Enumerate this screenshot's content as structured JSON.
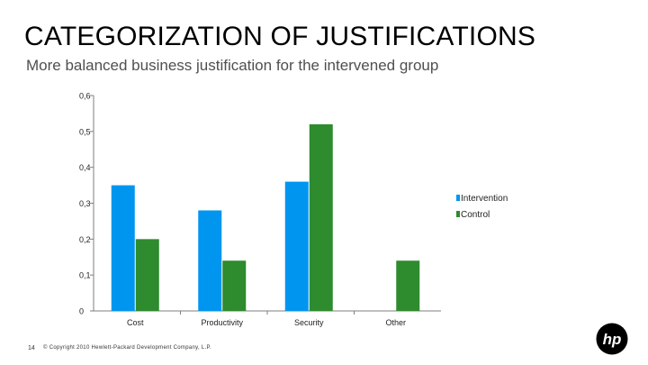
{
  "slide": {
    "title": "CATEGORIZATION OF JUSTIFICATIONS",
    "subtitle": "More balanced business justification for the intervened group",
    "page_number": "14",
    "copyright": "© Copyright 2010 Hewlett-Packard Development Company, L.P.",
    "logo_text": "hp"
  },
  "colors": {
    "intervention": "#0096f0",
    "control": "#2e8b2e",
    "axis": "#7f7f7f",
    "gridline": "#d9d9d9"
  },
  "chart_data": {
    "type": "bar",
    "categories": [
      "Cost",
      "Productivity",
      "Security",
      "Other"
    ],
    "series": [
      {
        "name": "Intervention",
        "values": [
          0.35,
          0.28,
          0.36,
          0
        ]
      },
      {
        "name": "Control",
        "values": [
          0.2,
          0.14,
          0.52,
          0.14
        ]
      }
    ],
    "y_ticks": [
      "0",
      "0,1",
      "0,2",
      "0,3",
      "0,4",
      "0,5",
      "0,6"
    ],
    "ylim": [
      0,
      0.6
    ],
    "grid": false,
    "legend_position": "right",
    "title": "",
    "xlabel": "",
    "ylabel": ""
  }
}
